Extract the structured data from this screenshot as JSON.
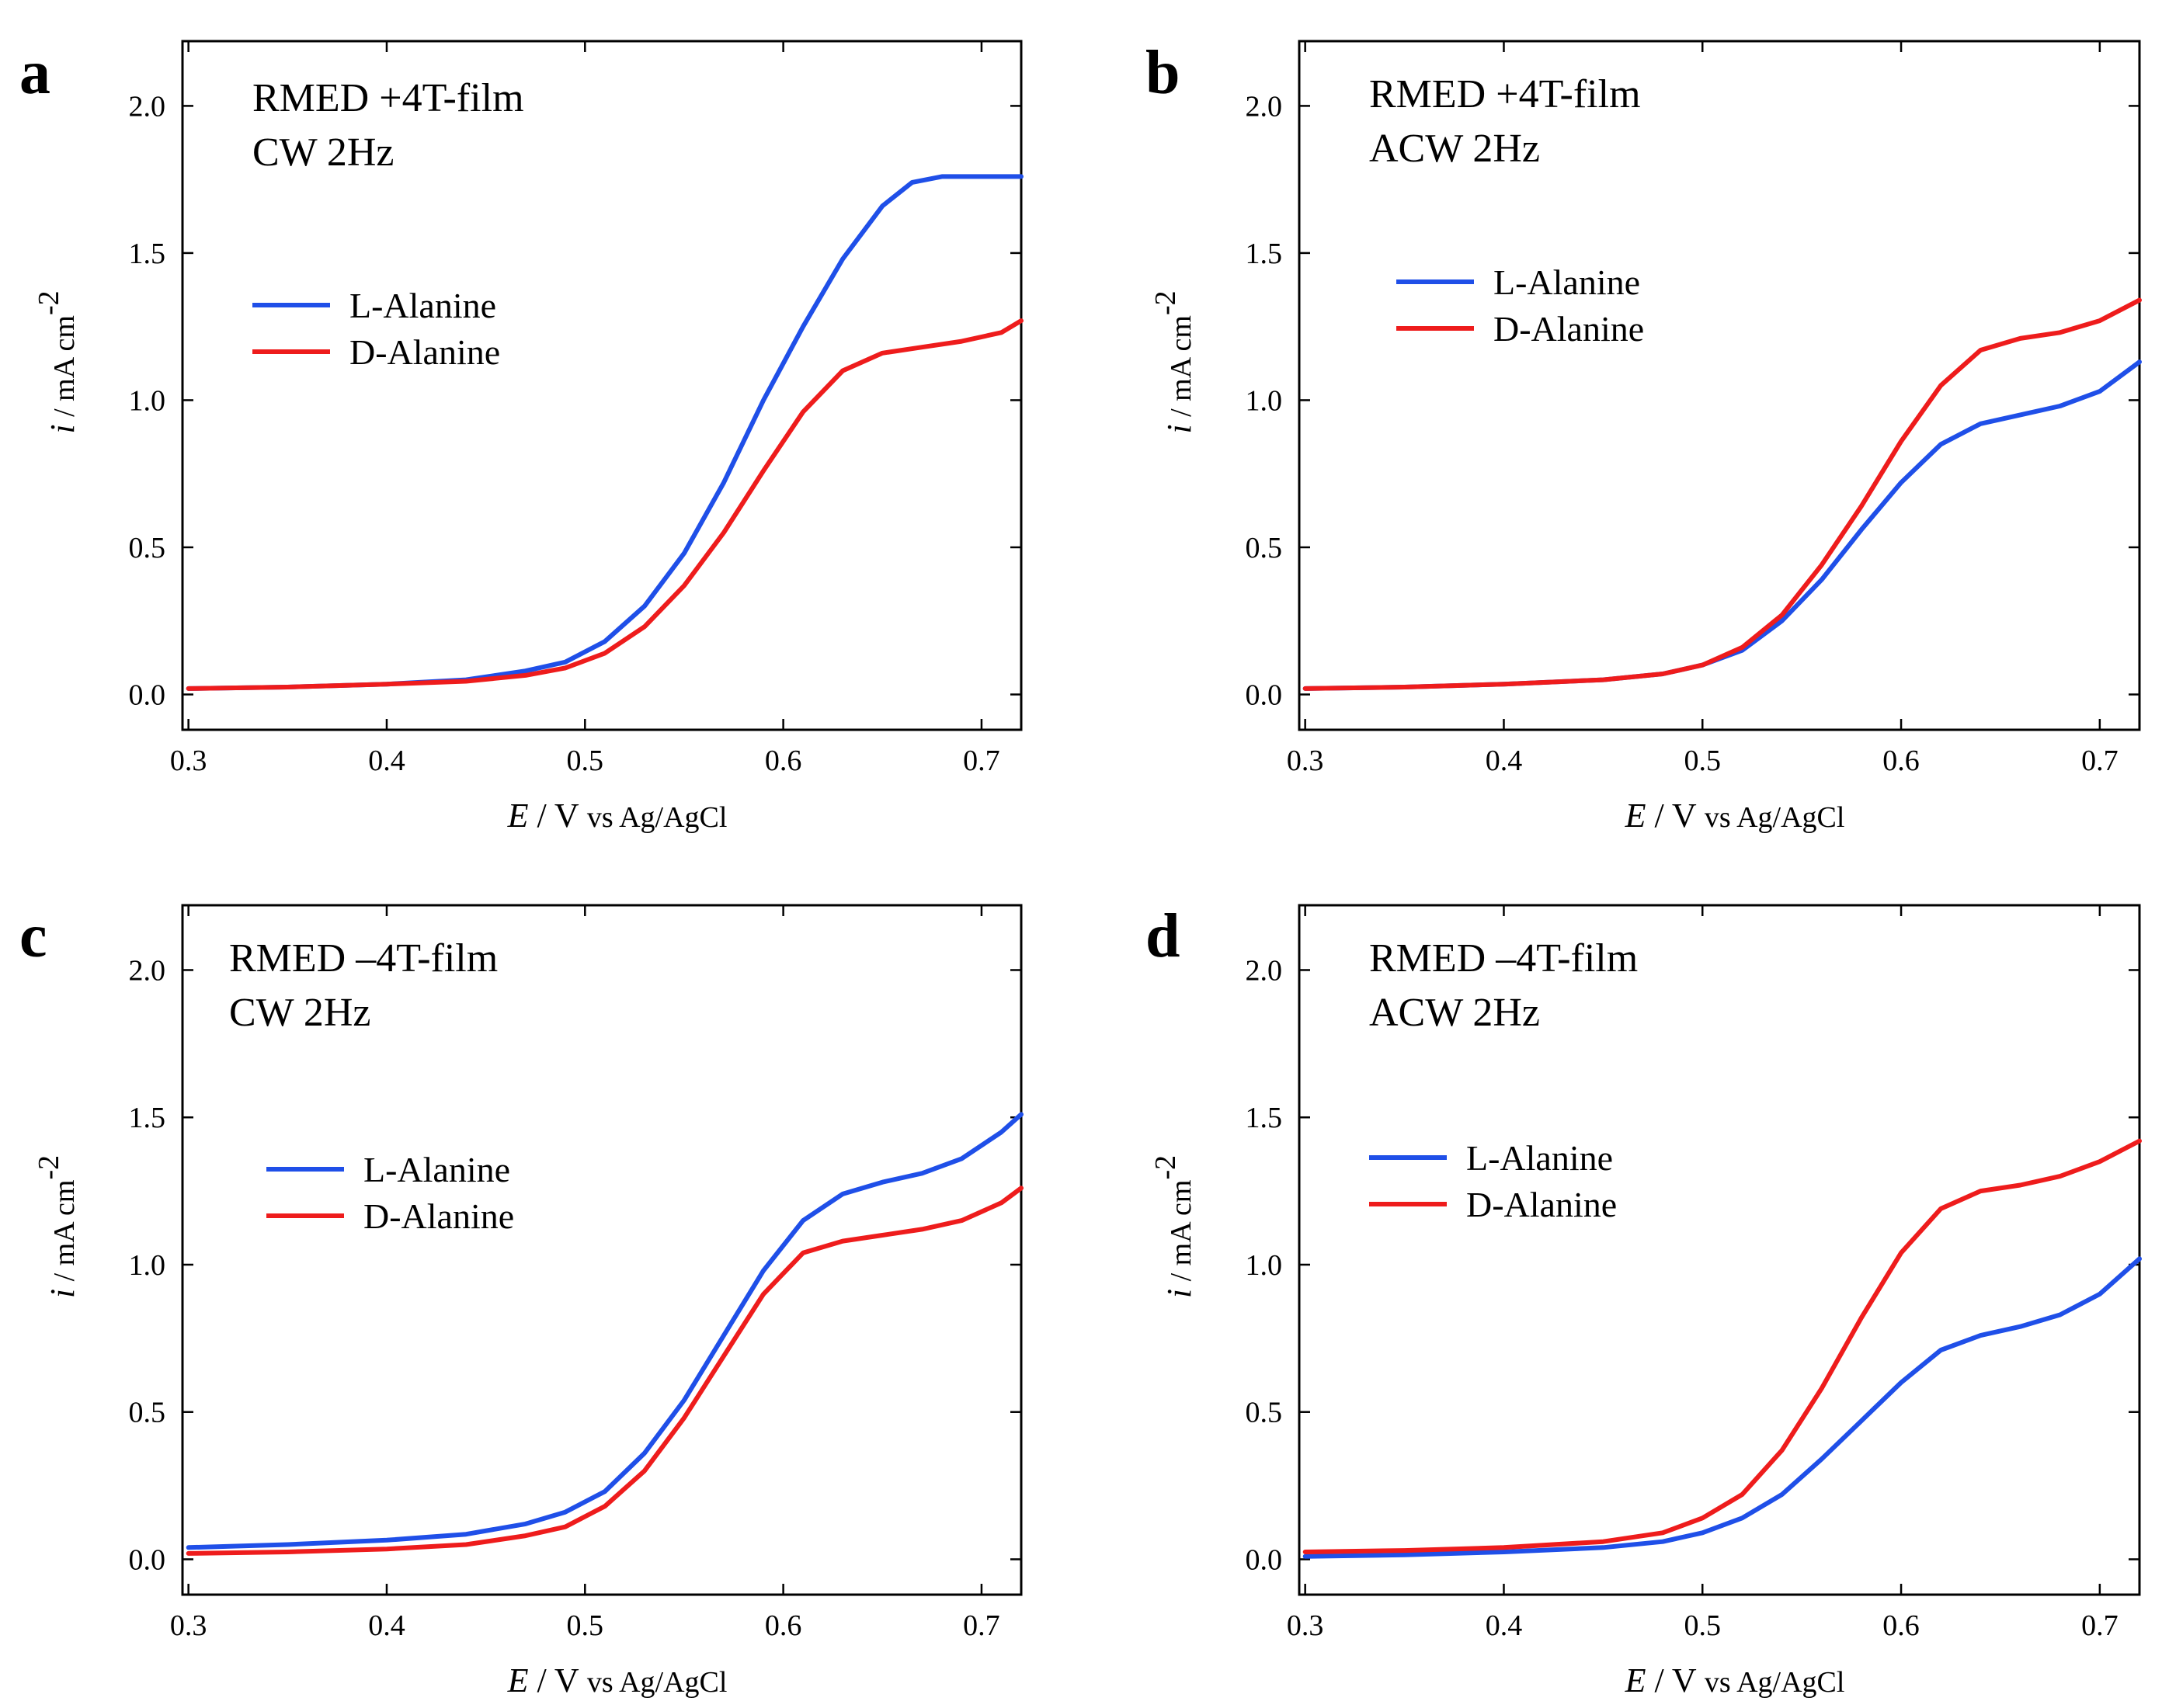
{
  "chart_data": [
    {
      "type": "line",
      "panel": "a",
      "annotation": [
        "RMED +4T-film",
        "CW 2Hz"
      ],
      "xlabel": {
        "var": "E",
        "rest": " / V ",
        "small": "vs Ag/AgCl"
      },
      "ylabel": {
        "var": "i",
        "rest": " / mA cm",
        "sup": "-2"
      },
      "xlim": [
        0.297,
        0.72
      ],
      "ylim": [
        -0.12,
        2.22
      ],
      "xticks": [
        0.3,
        0.4,
        0.5,
        0.6,
        0.7
      ],
      "xtick_labels": [
        "0.3",
        "0.4",
        "0.5",
        "0.6",
        "0.7"
      ],
      "yticks": [
        0.0,
        0.5,
        1.0,
        1.5,
        2.0
      ],
      "ytick_labels": [
        "0.0",
        "0.5",
        "1.0",
        "1.5",
        "2.0"
      ],
      "legend_position": "middle-left",
      "series": [
        {
          "name": "L-Alanine",
          "color": "#1f4fe8",
          "x": [
            0.3,
            0.35,
            0.4,
            0.44,
            0.47,
            0.49,
            0.51,
            0.53,
            0.55,
            0.57,
            0.59,
            0.61,
            0.63,
            0.65,
            0.665,
            0.68,
            0.7,
            0.72
          ],
          "y": [
            0.02,
            0.025,
            0.035,
            0.05,
            0.08,
            0.11,
            0.18,
            0.3,
            0.48,
            0.72,
            1.0,
            1.25,
            1.48,
            1.66,
            1.74,
            1.76,
            1.76,
            1.76
          ]
        },
        {
          "name": "D-Alanine",
          "color": "#ee1c1c",
          "x": [
            0.3,
            0.35,
            0.4,
            0.44,
            0.47,
            0.49,
            0.51,
            0.53,
            0.55,
            0.57,
            0.59,
            0.61,
            0.63,
            0.65,
            0.67,
            0.69,
            0.71,
            0.72
          ],
          "y": [
            0.02,
            0.025,
            0.035,
            0.045,
            0.065,
            0.09,
            0.14,
            0.23,
            0.37,
            0.55,
            0.76,
            0.96,
            1.1,
            1.16,
            1.18,
            1.2,
            1.23,
            1.27
          ]
        }
      ]
    },
    {
      "type": "line",
      "panel": "b",
      "annotation": [
        "RMED +4T-film",
        "ACW 2Hz"
      ],
      "xlabel": {
        "var": "E",
        "rest": " / V ",
        "small": "vs Ag/AgCl"
      },
      "ylabel": {
        "var": "i",
        "rest": " / mA cm",
        "sup": "-2"
      },
      "xlim": [
        0.297,
        0.72
      ],
      "ylim": [
        -0.12,
        2.22
      ],
      "xticks": [
        0.3,
        0.4,
        0.5,
        0.6,
        0.7
      ],
      "xtick_labels": [
        "0.3",
        "0.4",
        "0.5",
        "0.6",
        "0.7"
      ],
      "yticks": [
        0.0,
        0.5,
        1.0,
        1.5,
        2.0
      ],
      "ytick_labels": [
        "0.0",
        "0.5",
        "1.0",
        "1.5",
        "2.0"
      ],
      "legend_position": "middle-left",
      "series": [
        {
          "name": "L-Alanine",
          "color": "#1f4fe8",
          "x": [
            0.3,
            0.35,
            0.4,
            0.45,
            0.48,
            0.5,
            0.52,
            0.54,
            0.56,
            0.58,
            0.6,
            0.62,
            0.64,
            0.66,
            0.68,
            0.7,
            0.72
          ],
          "y": [
            0.02,
            0.025,
            0.035,
            0.05,
            0.07,
            0.1,
            0.15,
            0.25,
            0.39,
            0.56,
            0.72,
            0.85,
            0.92,
            0.95,
            0.98,
            1.03,
            1.13
          ]
        },
        {
          "name": "D-Alanine",
          "color": "#ee1c1c",
          "x": [
            0.3,
            0.35,
            0.4,
            0.45,
            0.48,
            0.5,
            0.52,
            0.54,
            0.56,
            0.58,
            0.6,
            0.62,
            0.64,
            0.66,
            0.68,
            0.7,
            0.72
          ],
          "y": [
            0.02,
            0.025,
            0.035,
            0.05,
            0.07,
            0.1,
            0.16,
            0.27,
            0.44,
            0.64,
            0.86,
            1.05,
            1.17,
            1.21,
            1.23,
            1.27,
            1.34
          ]
        }
      ]
    },
    {
      "type": "line",
      "panel": "c",
      "annotation": [
        "RMED –4T-film",
        "CW 2Hz"
      ],
      "xlabel": {
        "var": "E",
        "rest": " / V ",
        "small": "vs Ag/AgCl"
      },
      "ylabel": {
        "var": "i",
        "rest": " / mA cm",
        "sup": "-2"
      },
      "xlim": [
        0.297,
        0.72
      ],
      "ylim": [
        -0.12,
        2.22
      ],
      "xticks": [
        0.3,
        0.4,
        0.5,
        0.6,
        0.7
      ],
      "xtick_labels": [
        "0.3",
        "0.4",
        "0.5",
        "0.6",
        "0.7"
      ],
      "yticks": [
        0.0,
        0.5,
        1.0,
        1.5,
        2.0
      ],
      "ytick_labels": [
        "0.0",
        "0.5",
        "1.0",
        "1.5",
        "2.0"
      ],
      "legend_position": "middle-left",
      "series": [
        {
          "name": "L-Alanine",
          "color": "#1f4fe8",
          "x": [
            0.3,
            0.35,
            0.4,
            0.44,
            0.47,
            0.49,
            0.51,
            0.53,
            0.55,
            0.57,
            0.59,
            0.61,
            0.63,
            0.65,
            0.67,
            0.69,
            0.71,
            0.72
          ],
          "y": [
            0.04,
            0.05,
            0.065,
            0.085,
            0.12,
            0.16,
            0.23,
            0.36,
            0.54,
            0.76,
            0.98,
            1.15,
            1.24,
            1.28,
            1.31,
            1.36,
            1.45,
            1.51
          ]
        },
        {
          "name": "D-Alanine",
          "color": "#ee1c1c",
          "x": [
            0.3,
            0.35,
            0.4,
            0.44,
            0.47,
            0.49,
            0.51,
            0.53,
            0.55,
            0.57,
            0.59,
            0.61,
            0.63,
            0.65,
            0.67,
            0.69,
            0.71,
            0.72
          ],
          "y": [
            0.02,
            0.025,
            0.035,
            0.05,
            0.08,
            0.11,
            0.18,
            0.3,
            0.48,
            0.69,
            0.9,
            1.04,
            1.08,
            1.1,
            1.12,
            1.15,
            1.21,
            1.26
          ]
        }
      ]
    },
    {
      "type": "line",
      "panel": "d",
      "annotation": [
        "RMED –4T-film",
        "ACW 2Hz"
      ],
      "xlabel": {
        "var": "E",
        "rest": " / V ",
        "small": "vs Ag/AgCl"
      },
      "ylabel": {
        "var": "i",
        "rest": " / mA cm",
        "sup": "-2"
      },
      "xlim": [
        0.297,
        0.72
      ],
      "ylim": [
        -0.12,
        2.22
      ],
      "xticks": [
        0.3,
        0.4,
        0.5,
        0.6,
        0.7
      ],
      "xtick_labels": [
        "0.3",
        "0.4",
        "0.5",
        "0.6",
        "0.7"
      ],
      "yticks": [
        0.0,
        0.5,
        1.0,
        1.5,
        2.0
      ],
      "ytick_labels": [
        "0.0",
        "0.5",
        "1.0",
        "1.5",
        "2.0"
      ],
      "legend_position": "middle-left",
      "series": [
        {
          "name": "L-Alanine",
          "color": "#1f4fe8",
          "x": [
            0.3,
            0.35,
            0.4,
            0.45,
            0.48,
            0.5,
            0.52,
            0.54,
            0.56,
            0.58,
            0.6,
            0.62,
            0.64,
            0.66,
            0.68,
            0.7,
            0.72
          ],
          "y": [
            0.01,
            0.015,
            0.025,
            0.04,
            0.06,
            0.09,
            0.14,
            0.22,
            0.34,
            0.47,
            0.6,
            0.71,
            0.76,
            0.79,
            0.83,
            0.9,
            1.02
          ]
        },
        {
          "name": "D-Alanine",
          "color": "#ee1c1c",
          "x": [
            0.3,
            0.35,
            0.4,
            0.45,
            0.48,
            0.5,
            0.52,
            0.54,
            0.56,
            0.58,
            0.6,
            0.62,
            0.64,
            0.66,
            0.68,
            0.7,
            0.72
          ],
          "y": [
            0.025,
            0.03,
            0.04,
            0.06,
            0.09,
            0.14,
            0.22,
            0.37,
            0.58,
            0.82,
            1.04,
            1.19,
            1.25,
            1.27,
            1.3,
            1.35,
            1.42
          ]
        }
      ]
    }
  ]
}
